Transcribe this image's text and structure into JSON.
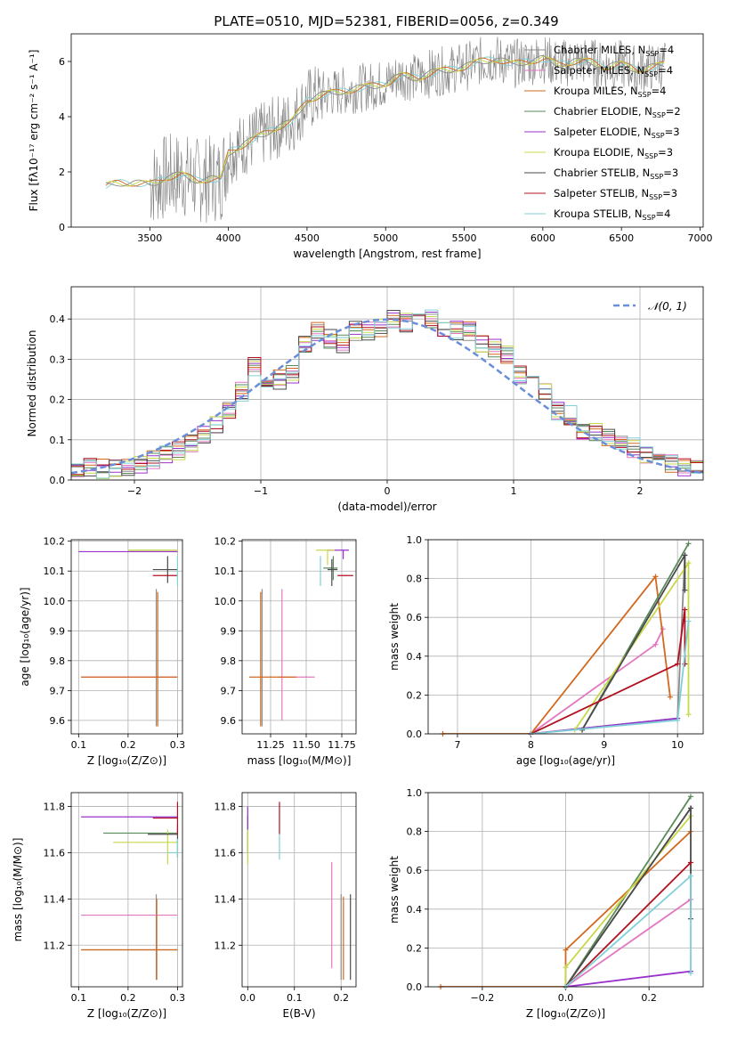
{
  "title": "PLATE=0510, MJD=52381, FIBERID=0056, z=0.349",
  "models": [
    {
      "name": "Chabrier MILES",
      "nssp": "4",
      "color": "#8c8c8c"
    },
    {
      "name": "Salpeter MILES",
      "nssp": "4",
      "color": "#e377c2"
    },
    {
      "name": "Kroupa MILES",
      "nssp": "4",
      "color": "#d2691e"
    },
    {
      "name": "Chabrier ELODIE",
      "nssp": "2",
      "color": "#5a8a5a"
    },
    {
      "name": "Salpeter ELODIE",
      "nssp": "3",
      "color": "#9932cc"
    },
    {
      "name": "Kroupa ELODIE",
      "nssp": "3",
      "color": "#c8d848"
    },
    {
      "name": "Chabrier STELIB",
      "nssp": "3",
      "color": "#4a4a4a"
    },
    {
      "name": "Salpeter STELIB",
      "nssp": "3",
      "color": "#b01020"
    },
    {
      "name": "Kroupa STELIB",
      "nssp": "4",
      "color": "#80d0d8"
    }
  ],
  "chart_data": [
    {
      "id": "spectrum",
      "type": "line",
      "xlabel": "wavelength [Angstrom, rest frame]",
      "ylabel": "Flux [fλ10⁻¹⁷ erg cm⁻² s⁻¹ A⁻¹]",
      "xlim": [
        3000,
        7020
      ],
      "ylim": [
        0,
        7.0
      ],
      "xticks": [
        "3500",
        "4000",
        "4500",
        "5000",
        "5500",
        "6000",
        "6500",
        "7000"
      ],
      "yticks": [
        "0",
        "2",
        "4",
        "6"
      ],
      "model_continuum": {
        "x": [
          3220,
          3300,
          3400,
          3500,
          3550,
          3600,
          3700,
          3800,
          3900,
          3950,
          4000,
          4100,
          4200,
          4300,
          4400,
          4500,
          4600,
          4700,
          4800,
          4900,
          5000,
          5100,
          5200,
          5300,
          5400,
          5500,
          5600,
          5700,
          5800,
          5900,
          6000,
          6100,
          6200,
          6300,
          6400,
          6500,
          6600,
          6700,
          6780
        ],
        "y": [
          1.5,
          1.6,
          1.6,
          1.55,
          1.65,
          1.8,
          1.9,
          1.7,
          1.75,
          1.7,
          2.7,
          3.0,
          3.3,
          3.6,
          3.8,
          4.6,
          4.8,
          4.9,
          5.0,
          5.1,
          5.2,
          5.5,
          5.4,
          5.6,
          5.7,
          5.8,
          6.0,
          6.1,
          5.9,
          6.0,
          6.1,
          5.9,
          6.0,
          6.0,
          5.8,
          5.9,
          5.7,
          5.8,
          5.9
        ]
      }
    },
    {
      "id": "residuals",
      "type": "step",
      "xlabel": "(data-model)/error",
      "ylabel": "Normed distribution",
      "xlim": [
        -2.5,
        2.5
      ],
      "ylim": [
        0,
        0.48
      ],
      "xticks": [
        "−2",
        "−1",
        "0",
        "1",
        "2"
      ],
      "yticks": [
        "0.0",
        "0.1",
        "0.2",
        "0.3",
        "0.4"
      ],
      "legend": "𝒩(0, 1)",
      "bins": [
        -2.5,
        -2.4,
        -2.3,
        -2.2,
        -2.1,
        -2.0,
        -1.9,
        -1.8,
        -1.7,
        -1.6,
        -1.5,
        -1.4,
        -1.3,
        -1.2,
        -1.1,
        -1.0,
        -0.9,
        -0.8,
        -0.7,
        -0.6,
        -0.5,
        -0.4,
        -0.3,
        -0.2,
        -0.1,
        0.0,
        0.1,
        0.2,
        0.3,
        0.4,
        0.5,
        0.6,
        0.7,
        0.8,
        0.9,
        1.0,
        1.1,
        1.2,
        1.3,
        1.4,
        1.5,
        1.6,
        1.7,
        1.8,
        1.9,
        2.0,
        2.1,
        2.2,
        2.3,
        2.4,
        2.5
      ],
      "mean_hist": [
        0.025,
        0.03,
        0.028,
        0.03,
        0.035,
        0.04,
        0.05,
        0.06,
        0.075,
        0.09,
        0.11,
        0.14,
        0.17,
        0.22,
        0.28,
        0.25,
        0.25,
        0.26,
        0.34,
        0.37,
        0.35,
        0.34,
        0.37,
        0.37,
        0.38,
        0.4,
        0.39,
        0.4,
        0.4,
        0.38,
        0.37,
        0.37,
        0.34,
        0.33,
        0.31,
        0.26,
        0.24,
        0.22,
        0.17,
        0.16,
        0.12,
        0.12,
        0.11,
        0.1,
        0.08,
        0.06,
        0.05,
        0.04,
        0.03,
        0.025
      ]
    },
    {
      "id": "age_vs_Z",
      "type": "scatter",
      "xlabel": "Z [log₁₀(Z/Z⊙)]",
      "ylabel": "age  [log₁₀(age/yr)]",
      "xlim": [
        0.085,
        0.31
      ],
      "ylim": [
        9.555,
        10.205
      ],
      "xticks": [
        "0.1",
        "0.2",
        "0.3"
      ],
      "yticks": [
        "9.6",
        "9.7",
        "9.8",
        "9.9",
        "10.0",
        "10.1",
        "10.2"
      ],
      "points": [
        {
          "m": 0,
          "x": 0.257,
          "y": 9.81,
          "xlo": 0.257,
          "xhi": 0.257,
          "ylo": 9.58,
          "yhi": 10.04
        },
        {
          "m": 1,
          "x": 0.258,
          "y": 9.745,
          "xlo": 0.105,
          "xhi": 0.3,
          "ylo": 9.745,
          "yhi": 9.745
        },
        {
          "m": 2,
          "x": 0.26,
          "y": 9.745,
          "xlo": 0.105,
          "xhi": 0.3,
          "ylo": 9.58,
          "yhi": 10.03
        },
        {
          "m": 3,
          "x": 0.28,
          "y": 10.165,
          "xlo": 0.2,
          "xhi": 0.3,
          "ylo": 10.165,
          "yhi": 10.165
        },
        {
          "m": 4,
          "x": 0.2,
          "y": 10.165,
          "xlo": 0.1,
          "xhi": 0.3,
          "ylo": 10.165,
          "yhi": 10.165
        },
        {
          "m": 5,
          "x": 0.25,
          "y": 10.17,
          "xlo": 0.2,
          "xhi": 0.3,
          "ylo": 10.17,
          "yhi": 10.17
        },
        {
          "m": 6,
          "x": 0.28,
          "y": 10.105,
          "xlo": 0.25,
          "xhi": 0.3,
          "ylo": 10.06,
          "yhi": 10.15
        },
        {
          "m": 7,
          "x": 0.28,
          "y": 10.085,
          "xlo": 0.25,
          "xhi": 0.3,
          "ylo": 10.085,
          "yhi": 10.085
        },
        {
          "m": 8,
          "x": 0.3,
          "y": 10.1,
          "xlo": 0.3,
          "xhi": 0.3,
          "ylo": 10.05,
          "yhi": 10.15
        }
      ]
    },
    {
      "id": "age_vs_mass",
      "type": "scatter",
      "xlabel": "mass [log₁₀(M/M⊙)]",
      "ylabel": "",
      "xlim": [
        11.05,
        11.85
      ],
      "ylim": [
        9.555,
        10.205
      ],
      "xticks": [
        "11.25",
        "11.50",
        "11.75"
      ],
      "yticks": [
        "9.6",
        "9.7",
        "9.8",
        "9.9",
        "10.0",
        "10.1",
        "10.2"
      ],
      "points": [
        {
          "m": 0,
          "x": 11.19,
          "y": 9.81,
          "xlo": 11.19,
          "xhi": 11.19,
          "ylo": 9.58,
          "yhi": 10.04
        },
        {
          "m": 1,
          "x": 11.33,
          "y": 9.745,
          "xlo": 11.3,
          "xhi": 11.56,
          "ylo": 9.6,
          "yhi": 10.04
        },
        {
          "m": 2,
          "x": 11.18,
          "y": 9.745,
          "xlo": 11.1,
          "xhi": 11.43,
          "ylo": 9.58,
          "yhi": 10.03
        },
        {
          "m": 3,
          "x": 11.69,
          "y": 10.11,
          "xlo": 11.62,
          "xhi": 11.72,
          "ylo": 10.07,
          "yhi": 10.15
        },
        {
          "m": 4,
          "x": 11.76,
          "y": 10.17,
          "xlo": 11.65,
          "xhi": 11.8,
          "ylo": 10.14,
          "yhi": 10.17
        },
        {
          "m": 5,
          "x": 11.65,
          "y": 10.17,
          "xlo": 11.57,
          "xhi": 11.7,
          "ylo": 10.12,
          "yhi": 10.17
        },
        {
          "m": 6,
          "x": 11.68,
          "y": 10.105,
          "xlo": 11.65,
          "xhi": 11.72,
          "ylo": 10.05,
          "yhi": 10.14
        },
        {
          "m": 7,
          "x": 11.77,
          "y": 10.085,
          "xlo": 11.72,
          "xhi": 11.83,
          "ylo": 10.085,
          "yhi": 10.085
        },
        {
          "m": 8,
          "x": 11.6,
          "y": 10.1,
          "xlo": 11.6,
          "xhi": 11.6,
          "ylo": 10.05,
          "yhi": 10.15
        }
      ]
    },
    {
      "id": "weight_vs_age",
      "type": "line",
      "xlabel": "age  [log₁₀(age/yr)]",
      "ylabel": "mass weight",
      "xlim": [
        6.6,
        10.35
      ],
      "ylim": [
        0,
        1.0
      ],
      "xticks": [
        "7",
        "8",
        "9",
        "10"
      ],
      "yticks": [
        "0.0",
        "0.2",
        "0.4",
        "0.6",
        "0.8",
        "1.0"
      ],
      "series": [
        {
          "m": 0,
          "x": [
            8.0,
            10.0,
            10.1
          ],
          "y": [
            0.0,
            0.08,
            0.92
          ]
        },
        {
          "m": 1,
          "x": [
            8.0,
            9.7,
            9.8
          ],
          "y": [
            0.0,
            0.46,
            0.54
          ]
        },
        {
          "m": 2,
          "x": [
            6.8,
            8.0,
            9.7,
            9.9
          ],
          "y": [
            0.0,
            0.0,
            0.81,
            0.19
          ]
        },
        {
          "m": 3,
          "x": [
            8.7,
            10.15
          ],
          "y": [
            0.02,
            0.98
          ]
        },
        {
          "m": 4,
          "x": [
            8.0,
            10.0
          ],
          "y": [
            0.0,
            0.08
          ]
        },
        {
          "m": 5,
          "x": [
            8.6,
            10.15,
            10.15
          ],
          "y": [
            0.02,
            0.88,
            0.1
          ]
        },
        {
          "m": 6,
          "x": [
            8.7,
            10.1,
            10.1
          ],
          "y": [
            0.02,
            0.92,
            0.74
          ]
        },
        {
          "m": 7,
          "x": [
            8.0,
            10.0,
            10.1,
            10.1
          ],
          "y": [
            0.0,
            0.36,
            0.64,
            0.36
          ]
        },
        {
          "m": 8,
          "x": [
            8.0,
            10.0,
            10.15
          ],
          "y": [
            0.0,
            0.07,
            0.58
          ]
        }
      ]
    },
    {
      "id": "mass_vs_Z",
      "type": "scatter",
      "xlabel": "Z [log₁₀(Z/Z⊙)]",
      "ylabel": "mass [log₁₀(M/M⊙)]",
      "xlim": [
        0.085,
        0.31
      ],
      "ylim": [
        11.02,
        11.86
      ],
      "xticks": [
        "0.1",
        "0.2",
        "0.3"
      ],
      "yticks": [
        "11.2",
        "11.4",
        "11.6",
        "11.8"
      ],
      "points": [
        {
          "m": 0,
          "x": 0.257,
          "y": 11.18,
          "xlo": 0.105,
          "xhi": 0.3,
          "ylo": 11.05,
          "yhi": 11.42
        },
        {
          "m": 1,
          "x": 0.2,
          "y": 11.33,
          "xlo": 0.105,
          "xhi": 0.3,
          "ylo": 11.33,
          "yhi": 11.33
        },
        {
          "m": 2,
          "x": 0.258,
          "y": 11.18,
          "xlo": 0.105,
          "xhi": 0.3,
          "ylo": 11.05,
          "yhi": 11.4
        },
        {
          "m": 3,
          "x": 0.25,
          "y": 11.685,
          "xlo": 0.15,
          "xhi": 0.3,
          "ylo": 11.685,
          "yhi": 11.685
        },
        {
          "m": 4,
          "x": 0.2,
          "y": 11.755,
          "xlo": 0.105,
          "xhi": 0.3,
          "ylo": 11.755,
          "yhi": 11.755
        },
        {
          "m": 5,
          "x": 0.28,
          "y": 11.645,
          "xlo": 0.17,
          "xhi": 0.3,
          "ylo": 11.55,
          "yhi": 11.7
        },
        {
          "m": 6,
          "x": 0.3,
          "y": 11.68,
          "xlo": 0.24,
          "xhi": 0.3,
          "ylo": 11.58,
          "yhi": 11.72
        },
        {
          "m": 7,
          "x": 0.3,
          "y": 11.75,
          "xlo": 0.25,
          "xhi": 0.3,
          "ylo": 11.68,
          "yhi": 11.82
        },
        {
          "m": 8,
          "x": 0.3,
          "y": 11.6,
          "xlo": 0.28,
          "xhi": 0.3,
          "ylo": 11.58,
          "yhi": 11.66
        }
      ]
    },
    {
      "id": "mass_vs_ebv",
      "type": "scatter",
      "xlabel": "E(B-V)",
      "ylabel": "",
      "xlim": [
        -0.012,
        0.232
      ],
      "ylim": [
        11.02,
        11.86
      ],
      "xticks": [
        "0.0",
        "0.1",
        "0.2"
      ],
      "yticks": [
        "11.2",
        "11.4",
        "11.6",
        "11.8"
      ],
      "points": [
        {
          "m": 0,
          "x": 0.2,
          "y": 11.2,
          "xlo": 0.2,
          "xhi": 0.2,
          "ylo": 11.05,
          "yhi": 11.42
        },
        {
          "m": 1,
          "x": 0.18,
          "y": 11.33,
          "xlo": 0.18,
          "xhi": 0.18,
          "ylo": 11.1,
          "yhi": 11.56
        },
        {
          "m": 2,
          "x": 0.205,
          "y": 11.2,
          "xlo": 0.205,
          "xhi": 0.205,
          "ylo": 11.05,
          "yhi": 11.41
        },
        {
          "m": 3,
          "x": 0.0,
          "y": 11.69,
          "xlo": 0.0,
          "xhi": 0.0,
          "ylo": 11.6,
          "yhi": 11.76
        },
        {
          "m": 4,
          "x": 0.0,
          "y": 11.76,
          "xlo": 0.0,
          "xhi": 0.0,
          "ylo": 11.7,
          "yhi": 11.8
        },
        {
          "m": 5,
          "x": 0.0,
          "y": 11.64,
          "xlo": 0.0,
          "xhi": 0.0,
          "ylo": 11.55,
          "yhi": 11.7
        },
        {
          "m": 6,
          "x": 0.22,
          "y": 11.2,
          "xlo": 0.22,
          "xhi": 0.22,
          "ylo": 11.05,
          "yhi": 11.42
        },
        {
          "m": 7,
          "x": 0.068,
          "y": 11.75,
          "xlo": 0.068,
          "xhi": 0.068,
          "ylo": 11.68,
          "yhi": 11.82
        },
        {
          "m": 8,
          "x": 0.068,
          "y": 11.62,
          "xlo": 0.068,
          "xhi": 0.068,
          "ylo": 11.57,
          "yhi": 11.68
        }
      ]
    },
    {
      "id": "weight_vs_Z",
      "type": "line",
      "xlabel": "Z [log₁₀(Z/Z⊙)]",
      "ylabel": "mass weight",
      "xlim": [
        -0.33,
        0.33
      ],
      "ylim": [
        0,
        1.0
      ],
      "xticks": [
        "−0.2",
        "0.0",
        "0.2"
      ],
      "yticks": [
        "0.0",
        "0.2",
        "0.4",
        "0.6",
        "0.8",
        "1.0"
      ],
      "series": [
        {
          "m": 0,
          "x": [
            0.0,
            0.3
          ],
          "y": [
            0.0,
            0.92
          ]
        },
        {
          "m": 1,
          "x": [
            0.0,
            0.3
          ],
          "y": [
            0.0,
            0.45
          ]
        },
        {
          "m": 2,
          "x": [
            -0.3,
            0.0,
            0.0,
            0.3
          ],
          "y": [
            0.0,
            0.0,
            0.19,
            0.8
          ]
        },
        {
          "m": 3,
          "x": [
            0.0,
            0.3
          ],
          "y": [
            0.0,
            0.98
          ]
        },
        {
          "m": 4,
          "x": [
            0.0,
            0.3
          ],
          "y": [
            0.0,
            0.08
          ]
        },
        {
          "m": 5,
          "x": [
            0.0,
            0.0,
            0.3
          ],
          "y": [
            0.0,
            0.1,
            0.88
          ]
        },
        {
          "m": 6,
          "x": [
            0.0,
            0.3,
            0.3
          ],
          "y": [
            0.0,
            0.92,
            0.35
          ]
        },
        {
          "m": 7,
          "x": [
            0.0,
            0.3
          ],
          "y": [
            0.0,
            0.64
          ]
        },
        {
          "m": 8,
          "x": [
            0.0,
            0.3,
            0.3
          ],
          "y": [
            0.0,
            0.57,
            0.07
          ]
        }
      ]
    }
  ]
}
